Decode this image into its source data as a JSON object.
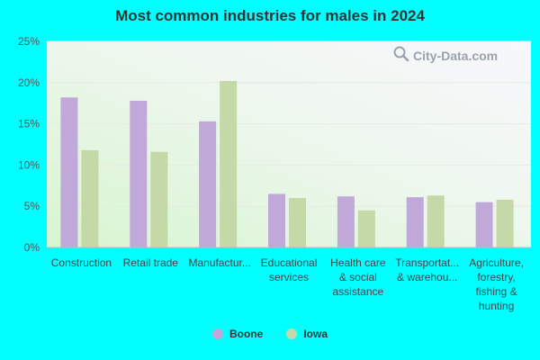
{
  "chart_data": {
    "type": "bar",
    "title": "Most common industries for males in 2024",
    "categories": [
      [
        "Construction"
      ],
      [
        "Retail trade"
      ],
      [
        "Manufactur..."
      ],
      [
        "Educational",
        "services"
      ],
      [
        "Health care",
        "& social",
        "assistance"
      ],
      [
        "Transportat...",
        "& warehou..."
      ],
      [
        "Agriculture,",
        "forestry,",
        "fishing &",
        "hunting"
      ]
    ],
    "series": [
      {
        "name": "Boone",
        "values": [
          18.2,
          17.8,
          15.3,
          6.5,
          6.2,
          6.1,
          5.5
        ]
      },
      {
        "name": "Iowa",
        "values": [
          11.8,
          11.6,
          20.2,
          6.0,
          4.5,
          6.3,
          5.8
        ]
      }
    ],
    "yticks": [
      "0%",
      "5%",
      "10%",
      "15%",
      "20%",
      "25%"
    ],
    "ytick_values": [
      0,
      5,
      10,
      15,
      20,
      25
    ],
    "ylim": [
      0,
      25
    ],
    "grid": true,
    "legend_position": "bottom-center",
    "colors": {
      "Boone": "#c0a8d9",
      "Iowa": "#c5d9a8"
    }
  },
  "watermark": {
    "text": "City-Data.com",
    "icon": "magnifier-icon"
  }
}
